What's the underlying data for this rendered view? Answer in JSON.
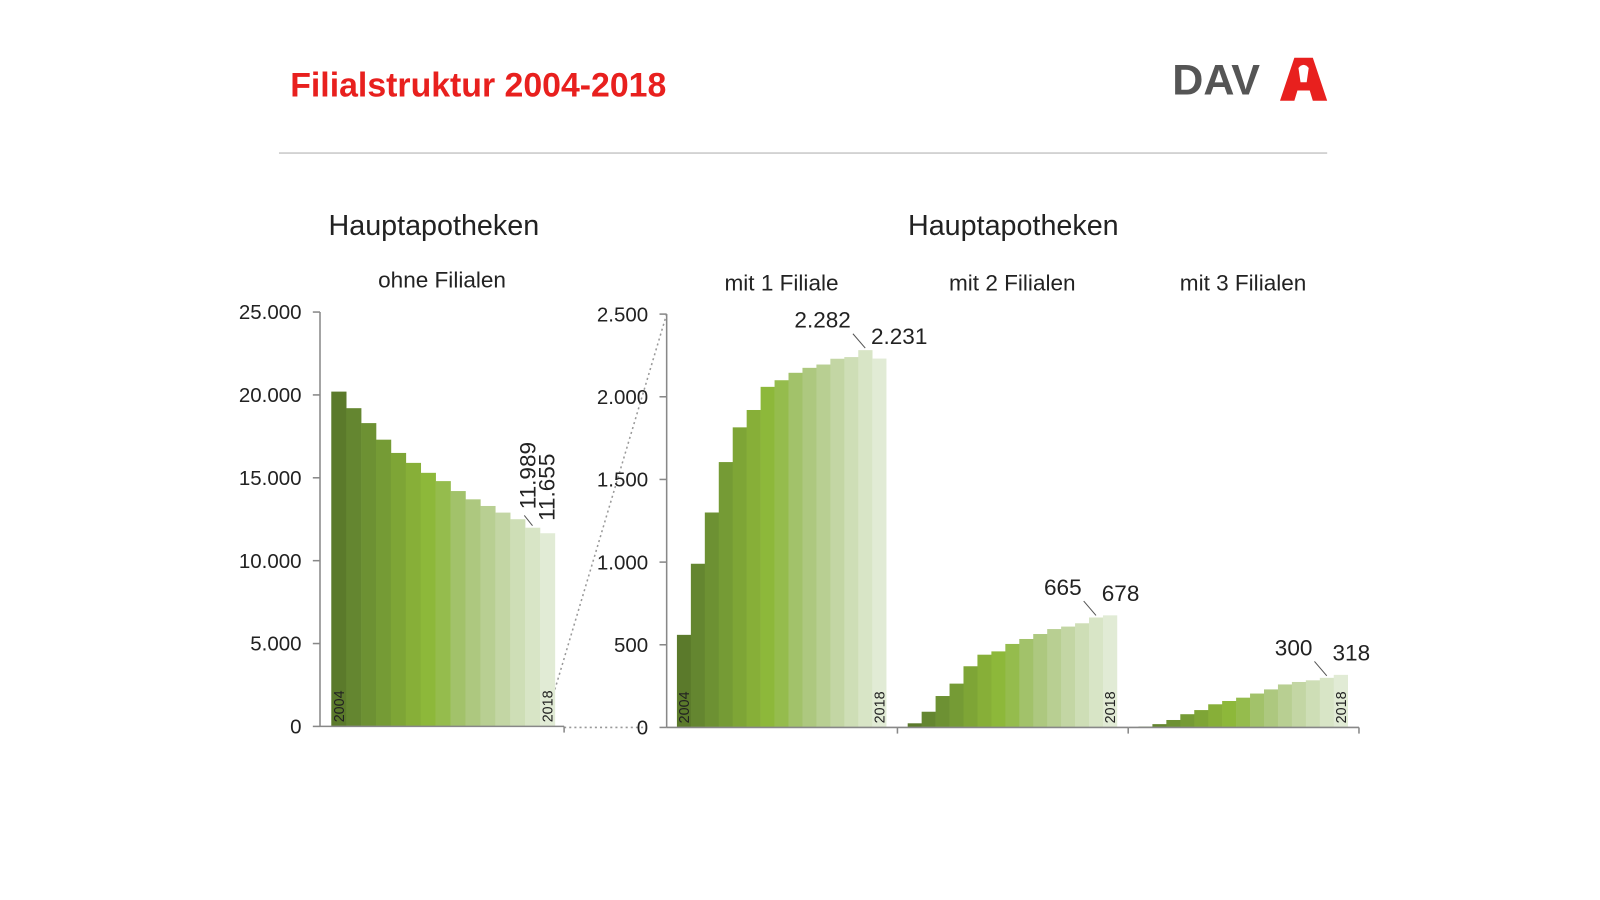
{
  "header": {
    "title": "Filialstruktur 2004-2018",
    "logo": "DAV"
  },
  "chart_data": [
    {
      "type": "bar",
      "title": "Hauptapotheken",
      "subtitle": "ohne Filialen",
      "categories": [
        "2004",
        null,
        null,
        null,
        null,
        null,
        null,
        null,
        null,
        null,
        null,
        null,
        null,
        null,
        "2018"
      ],
      "values": [
        20200,
        19200,
        18300,
        17300,
        16500,
        15900,
        15300,
        14800,
        14200,
        13700,
        13300,
        12900,
        12500,
        11989,
        11655
      ],
      "value_labels": [
        null,
        null,
        null,
        null,
        null,
        null,
        null,
        null,
        null,
        null,
        null,
        null,
        null,
        "11.989",
        "11.655"
      ],
      "ylim": [
        0,
        25000
      ],
      "yticks": [
        0,
        {
          "value": 5000,
          "label": "5.000"
        },
        {
          "value": 10000,
          "label": "10.000"
        },
        {
          "value": 15000,
          "label": "15.000"
        },
        {
          "value": 20000,
          "label": "20.000"
        },
        {
          "value": 25000,
          "label": "25.000"
        }
      ],
      "colors": [
        "#5b7a2b",
        "#648630",
        "#6d9133",
        "#759b35",
        "#7ea536",
        "#87af38",
        "#8db83a",
        "#95bc4d",
        "#a2c26a",
        "#adc87f",
        "#b8cf92",
        "#c3d6a4",
        "#cedeb6",
        "#d8e5c6",
        "#e1ebd5"
      ]
    },
    {
      "type": "bar",
      "title": "Hauptapotheken",
      "subtitle": "mit 1 Filiale",
      "categories": [
        "2004",
        null,
        null,
        null,
        null,
        null,
        null,
        null,
        null,
        null,
        null,
        null,
        null,
        null,
        "2018"
      ],
      "values": [
        560,
        990,
        1300,
        1605,
        1815,
        1920,
        2060,
        2100,
        2145,
        2175,
        2195,
        2230,
        2240,
        2282,
        2231
      ],
      "value_labels": [
        null,
        null,
        null,
        null,
        null,
        null,
        null,
        null,
        null,
        null,
        null,
        null,
        null,
        "2.282",
        "2.231"
      ],
      "ylim": [
        0,
        2500
      ],
      "yticks": [
        0,
        500,
        {
          "value": 1000,
          "label": "1.000"
        },
        {
          "value": 1500,
          "label": "1.500"
        },
        {
          "value": 2000,
          "label": "2.000"
        },
        {
          "value": 2500,
          "label": "2.500"
        }
      ],
      "colors": [
        "#5b7a2b",
        "#648630",
        "#6d9133",
        "#759b35",
        "#7ea536",
        "#87af38",
        "#8db83a",
        "#95bc4d",
        "#a2c26a",
        "#adc87f",
        "#b8cf92",
        "#c3d6a4",
        "#cedeb6",
        "#d8e5c6",
        "#e1ebd5"
      ]
    },
    {
      "type": "bar",
      "subtitle": "mit 2 Filialen",
      "categories": [
        null,
        null,
        null,
        null,
        null,
        null,
        null,
        null,
        null,
        null,
        null,
        null,
        null,
        null,
        "2018"
      ],
      "values": [
        25,
        95,
        190,
        265,
        370,
        440,
        460,
        505,
        535,
        565,
        595,
        610,
        630,
        665,
        678
      ],
      "value_labels": [
        null,
        null,
        null,
        null,
        null,
        null,
        null,
        null,
        null,
        null,
        null,
        null,
        null,
        "665",
        "678"
      ],
      "ylim": [
        0,
        2500
      ],
      "colors": [
        "#5b7a2b",
        "#648630",
        "#6d9133",
        "#759b35",
        "#7ea536",
        "#87af38",
        "#8db83a",
        "#95bc4d",
        "#a2c26a",
        "#adc87f",
        "#b8cf92",
        "#c3d6a4",
        "#cedeb6",
        "#d8e5c6",
        "#e1ebd5"
      ]
    },
    {
      "type": "bar",
      "subtitle": "mit 3 Filialen",
      "categories": [
        null,
        null,
        null,
        null,
        null,
        null,
        null,
        null,
        null,
        null,
        null,
        null,
        null,
        null,
        "2018"
      ],
      "values": [
        5,
        20,
        45,
        80,
        105,
        140,
        160,
        180,
        205,
        230,
        260,
        275,
        285,
        300,
        318
      ],
      "value_labels": [
        null,
        null,
        null,
        null,
        null,
        null,
        null,
        null,
        null,
        null,
        null,
        null,
        null,
        "300",
        "318"
      ],
      "ylim": [
        0,
        2500
      ],
      "colors": [
        "#5b7a2b",
        "#648630",
        "#6d9133",
        "#759b35",
        "#7ea536",
        "#87af38",
        "#8db83a",
        "#95bc4d",
        "#a2c26a",
        "#adc87f",
        "#b8cf92",
        "#c3d6a4",
        "#cedeb6",
        "#d8e5c6",
        "#e1ebd5"
      ]
    }
  ]
}
